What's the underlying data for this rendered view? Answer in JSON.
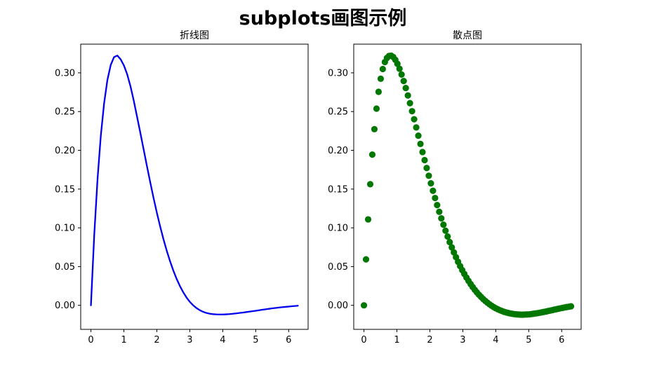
{
  "figure": {
    "suptitle": "subplots画图示例"
  },
  "colors": {
    "line": "#0000ee",
    "scatter": "#007700"
  },
  "chart_data": [
    {
      "type": "line",
      "title": "折线图",
      "xlabel": "",
      "ylabel": "",
      "xlim": [
        -0.31,
        6.59
      ],
      "ylim": [
        -0.031,
        0.337
      ],
      "xticks": [
        0,
        1,
        2,
        3,
        4,
        5,
        6
      ],
      "yticks": [
        0.0,
        0.05,
        0.1,
        0.15,
        0.2,
        0.25,
        0.3
      ],
      "xtick_labels": [
        "0",
        "1",
        "2",
        "3",
        "4",
        "5",
        "6"
      ],
      "ytick_labels": [
        "0.00",
        "0.05",
        "0.10",
        "0.15",
        "0.20",
        "0.25",
        "0.30"
      ],
      "grid": false,
      "series": [
        {
          "x": [
            0,
            0.1,
            0.2,
            0.3,
            0.4,
            0.5,
            0.6,
            0.7,
            0.8,
            0.9,
            1.0,
            1.1,
            1.2,
            1.3,
            1.4,
            1.5,
            1.6,
            1.7,
            1.8,
            1.9,
            2.0,
            2.1,
            2.2,
            2.3,
            2.4,
            2.5,
            2.6,
            2.7,
            2.8,
            2.9,
            3.0,
            3.1,
            3.2,
            3.3,
            3.4,
            3.5,
            3.6,
            3.7,
            3.8,
            3.9,
            4.0,
            4.1,
            4.2,
            4.3,
            4.4,
            4.5,
            4.6,
            4.7,
            4.8,
            4.9,
            5.0,
            5.1,
            5.2,
            5.3,
            5.4,
            5.5,
            5.6,
            5.7,
            5.8,
            5.9,
            6.0,
            6.1,
            6.2,
            6.28
          ],
          "y": [
            0.0,
            0.0903,
            0.1627,
            0.2189,
            0.2607,
            0.2908,
            0.31,
            0.3202,
            0.3223,
            0.3175,
            0.3096,
            0.2981,
            0.2827,
            0.264,
            0.2433,
            0.2224,
            0.201,
            0.1796,
            0.1587,
            0.1386,
            0.1196,
            0.1019,
            0.0855,
            0.0705,
            0.057,
            0.0449,
            0.0342,
            0.0249,
            0.0169,
            0.0101,
            0.0045,
            0.0001,
            -0.0034,
            -0.0062,
            -0.0083,
            -0.0098,
            -0.0108,
            -0.0114,
            -0.0117,
            -0.0118,
            -0.0118,
            -0.0116,
            -0.0113,
            -0.0109,
            -0.0104,
            -0.0099,
            -0.0094,
            -0.0088,
            -0.0082,
            -0.0076,
            -0.007,
            -0.0064,
            -0.0057,
            -0.0051,
            -0.0045,
            -0.0039,
            -0.0034,
            -0.0029,
            -0.0024,
            -0.002,
            -0.0016,
            -0.0012,
            -0.0008,
            -0.0005
          ]
        }
      ]
    },
    {
      "type": "scatter",
      "title": "散点图",
      "xlabel": "",
      "ylabel": "",
      "xlim": [
        -0.31,
        6.59
      ],
      "ylim": [
        -0.031,
        0.337
      ],
      "xticks": [
        0,
        1,
        2,
        3,
        4,
        5,
        6
      ],
      "yticks": [
        0.0,
        0.05,
        0.1,
        0.15,
        0.2,
        0.25,
        0.3
      ],
      "xtick_labels": [
        "0",
        "1",
        "2",
        "3",
        "4",
        "5",
        "6"
      ],
      "ytick_labels": [
        "0.00",
        "0.05",
        "0.10",
        "0.15",
        "0.20",
        "0.25",
        "0.30"
      ],
      "grid": false,
      "series": [
        {
          "x": [
            0.0,
            0.063,
            0.127,
            0.19,
            0.254,
            0.317,
            0.381,
            0.444,
            0.508,
            0.571,
            0.635,
            0.698,
            0.762,
            0.825,
            0.889,
            0.952,
            1.015,
            1.079,
            1.142,
            1.206,
            1.269,
            1.333,
            1.396,
            1.46,
            1.523,
            1.587,
            1.65,
            1.714,
            1.777,
            1.841,
            1.904,
            1.967,
            2.031,
            2.094,
            2.158,
            2.221,
            2.285,
            2.348,
            2.412,
            2.475,
            2.539,
            2.602,
            2.666,
            2.729,
            2.793,
            2.856,
            2.919,
            2.983,
            3.046,
            3.11,
            3.173,
            3.237,
            3.3,
            3.364,
            3.427,
            3.491,
            3.554,
            3.618,
            3.681,
            3.745,
            3.808,
            3.871,
            3.935,
            3.998,
            4.062,
            4.125,
            4.189,
            4.252,
            4.316,
            4.379,
            4.443,
            4.506,
            4.57,
            4.633,
            4.697,
            4.76,
            4.823,
            4.887,
            4.95,
            5.014,
            5.077,
            5.141,
            5.204,
            5.268,
            5.331,
            5.395,
            5.458,
            5.522,
            5.585,
            5.649,
            5.712,
            5.775,
            5.839,
            5.902,
            5.966,
            6.029,
            6.093,
            6.156,
            6.22,
            6.283
          ],
          "y": [
            0.0,
            0.0593,
            0.1109,
            0.1563,
            0.1945,
            0.2273,
            0.2538,
            0.2755,
            0.2924,
            0.3049,
            0.3139,
            0.3192,
            0.3218,
            0.3221,
            0.3204,
            0.3168,
            0.3117,
            0.3053,
            0.2978,
            0.2894,
            0.2804,
            0.2708,
            0.2608,
            0.2505,
            0.2401,
            0.2295,
            0.2189,
            0.2083,
            0.1978,
            0.1874,
            0.1772,
            0.1672,
            0.1574,
            0.1478,
            0.1385,
            0.1294,
            0.1207,
            0.1122,
            0.1041,
            0.0963,
            0.0888,
            0.0816,
            0.0748,
            0.0683,
            0.0621,
            0.0562,
            0.0506,
            0.0454,
            0.0405,
            0.0358,
            0.0315,
            0.0274,
            0.0236,
            0.02,
            0.0167,
            0.0136,
            0.0108,
            0.0081,
            0.0057,
            0.0035,
            0.0014,
            -0.0005,
            -0.0022,
            -0.0037,
            -0.0051,
            -0.0063,
            -0.0074,
            -0.0084,
            -0.0092,
            -0.0099,
            -0.0105,
            -0.011,
            -0.0114,
            -0.0117,
            -0.0119,
            -0.012,
            -0.012,
            -0.0119,
            -0.0118,
            -0.0116,
            -0.0113,
            -0.0109,
            -0.0105,
            -0.0101,
            -0.0096,
            -0.0091,
            -0.0085,
            -0.008,
            -0.0074,
            -0.0068,
            -0.0062,
            -0.0056,
            -0.005,
            -0.0044,
            -0.0038,
            -0.0033,
            -0.0027,
            -0.0022,
            -0.0018,
            -0.0013
          ]
        }
      ]
    }
  ]
}
